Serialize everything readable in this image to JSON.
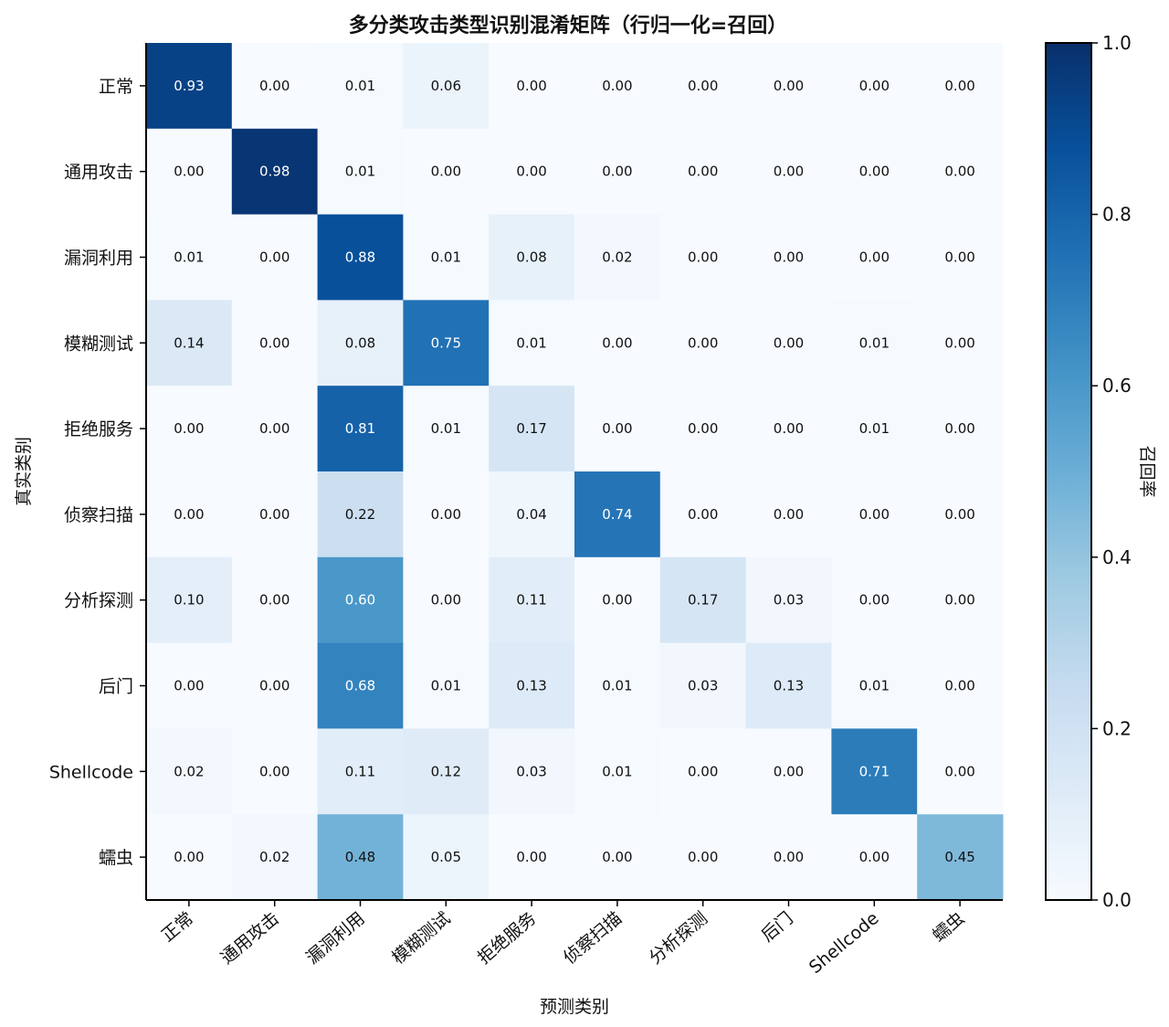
{
  "chart_data": {
    "type": "heatmap",
    "title": "多分类攻击类型识别混淆矩阵（行归一化=召回）",
    "xlabel": "预测类别",
    "ylabel": "真实类别",
    "colorbar_label": "召回率",
    "colormap": "Blues",
    "vmin": 0.0,
    "vmax": 1.0,
    "colorbar_ticks": [
      "0.0",
      "0.2",
      "0.4",
      "0.6",
      "0.8",
      "1.0"
    ],
    "categories": [
      "正常",
      "通用攻击",
      "漏洞利用",
      "模糊测试",
      "拒绝服务",
      "侦察扫描",
      "分析探测",
      "后门",
      "Shellcode",
      "蠕虫"
    ],
    "matrix": [
      [
        0.93,
        0.0,
        0.01,
        0.06,
        0.0,
        0.0,
        0.0,
        0.0,
        0.0,
        0.0
      ],
      [
        0.0,
        0.98,
        0.01,
        0.0,
        0.0,
        0.0,
        0.0,
        0.0,
        0.0,
        0.0
      ],
      [
        0.01,
        0.0,
        0.88,
        0.01,
        0.08,
        0.02,
        0.0,
        0.0,
        0.0,
        0.0
      ],
      [
        0.14,
        0.0,
        0.08,
        0.75,
        0.01,
        0.0,
        0.0,
        0.0,
        0.01,
        0.0
      ],
      [
        0.0,
        0.0,
        0.81,
        0.01,
        0.17,
        0.0,
        0.0,
        0.0,
        0.01,
        0.0
      ],
      [
        0.0,
        0.0,
        0.22,
        0.0,
        0.04,
        0.74,
        0.0,
        0.0,
        0.0,
        0.0
      ],
      [
        0.1,
        0.0,
        0.6,
        0.0,
        0.11,
        0.0,
        0.17,
        0.03,
        0.0,
        0.0
      ],
      [
        0.0,
        0.0,
        0.68,
        0.01,
        0.13,
        0.01,
        0.03,
        0.13,
        0.01,
        0.0
      ],
      [
        0.02,
        0.0,
        0.11,
        0.12,
        0.03,
        0.01,
        0.0,
        0.0,
        0.71,
        0.0
      ],
      [
        0.0,
        0.02,
        0.48,
        0.05,
        0.0,
        0.0,
        0.0,
        0.0,
        0.0,
        0.45
      ]
    ]
  }
}
